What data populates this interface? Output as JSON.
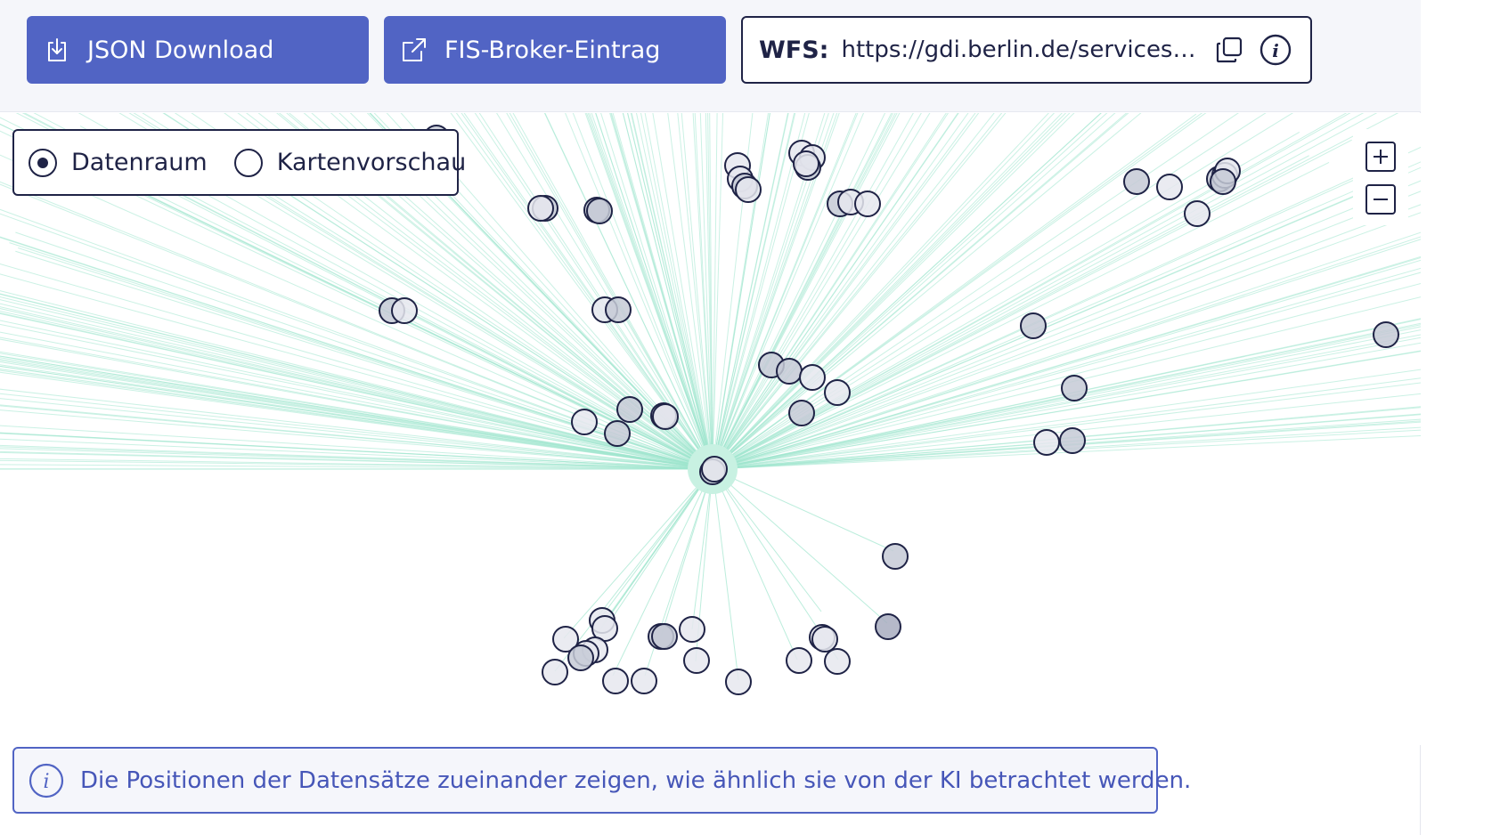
{
  "toolbar": {
    "json_download_label": "JSON Download",
    "fis_broker_label": "FIS-Broker-Eintrag",
    "json_icon": "download-icon",
    "fis_icon": "external-link-icon"
  },
  "wfs": {
    "label": "WFS:",
    "url": "https://gdi.berlin.de/services/w...",
    "copy_icon": "copy-icon",
    "info_icon": "info-icon"
  },
  "view_toggle": {
    "options": [
      {
        "label": "Datenraum",
        "selected": true
      },
      {
        "label": "Kartenvorschau",
        "selected": false
      }
    ]
  },
  "zoom": {
    "in_icon": "plus-icon",
    "out_icon": "minus-icon"
  },
  "info_bar": {
    "icon": "info-icon",
    "text": "Die Positionen der Datensätze zueinander zeigen, wie ähnlich sie von der KI betrachtet werden."
  },
  "colors": {
    "primary": "#5164c4",
    "dark": "#1f2346",
    "edge": "#9fe6cd",
    "toolbar_bg": "#f5f6fa"
  }
}
